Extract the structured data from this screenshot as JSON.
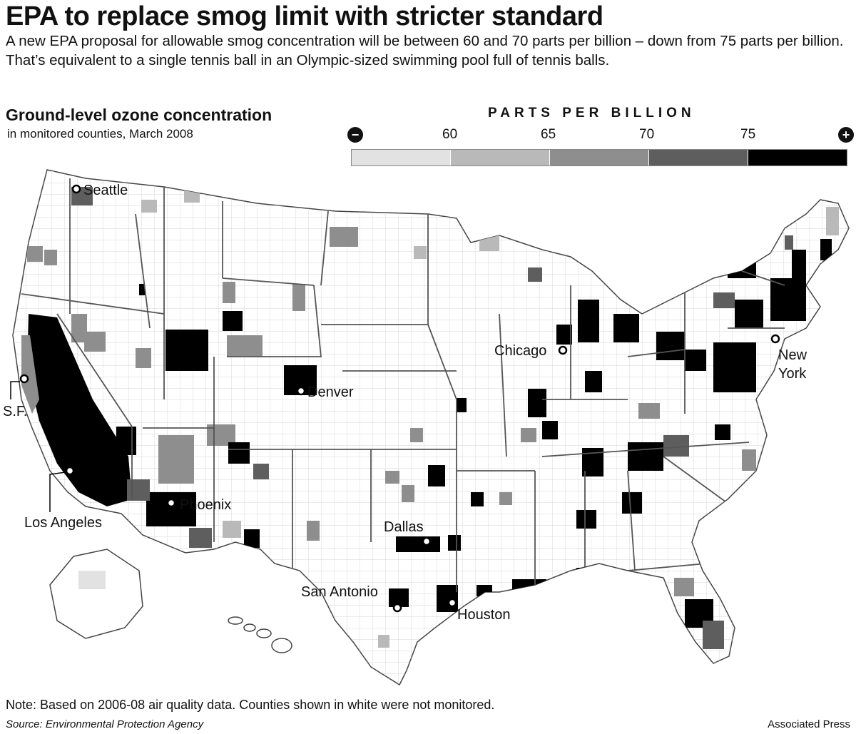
{
  "headline": "EPA to replace smog limit with stricter standard",
  "dek": "A new EPA proposal for allowable smog concentration will be between 60 and 70 parts per billion – down from 75 parts per billion. That’s equivalent to a single tennis ball in an Olympic-sized swimming pool full of tennis balls.",
  "map": {
    "title": "Ground-level ozone concentration",
    "subtitle": "in monitored counties, March 2008"
  },
  "legend": {
    "title": "PARTS PER BILLION",
    "minus_symbol": "−",
    "plus_symbol": "+",
    "ticks": [
      "60",
      "65",
      "70",
      "75"
    ],
    "colors": [
      "#e2e2e2",
      "#b9b9b9",
      "#8e8e8e",
      "#5e5e5e",
      "#000000"
    ]
  },
  "cities": [
    {
      "name": "Seattle"
    },
    {
      "name": "S.F."
    },
    {
      "name": "Los Angeles"
    },
    {
      "name": "Phoenix"
    },
    {
      "name": "Denver"
    },
    {
      "name": "Dallas"
    },
    {
      "name": "San Antonio"
    },
    {
      "name": "Houston"
    },
    {
      "name": "Chicago"
    },
    {
      "name": "New York"
    }
  ],
  "note": "Note: Based on 2006-08 air quality data. Counties shown in white were not monitored.",
  "source": "Source: Environmental Protection Agency",
  "credit": "Associated Press"
}
